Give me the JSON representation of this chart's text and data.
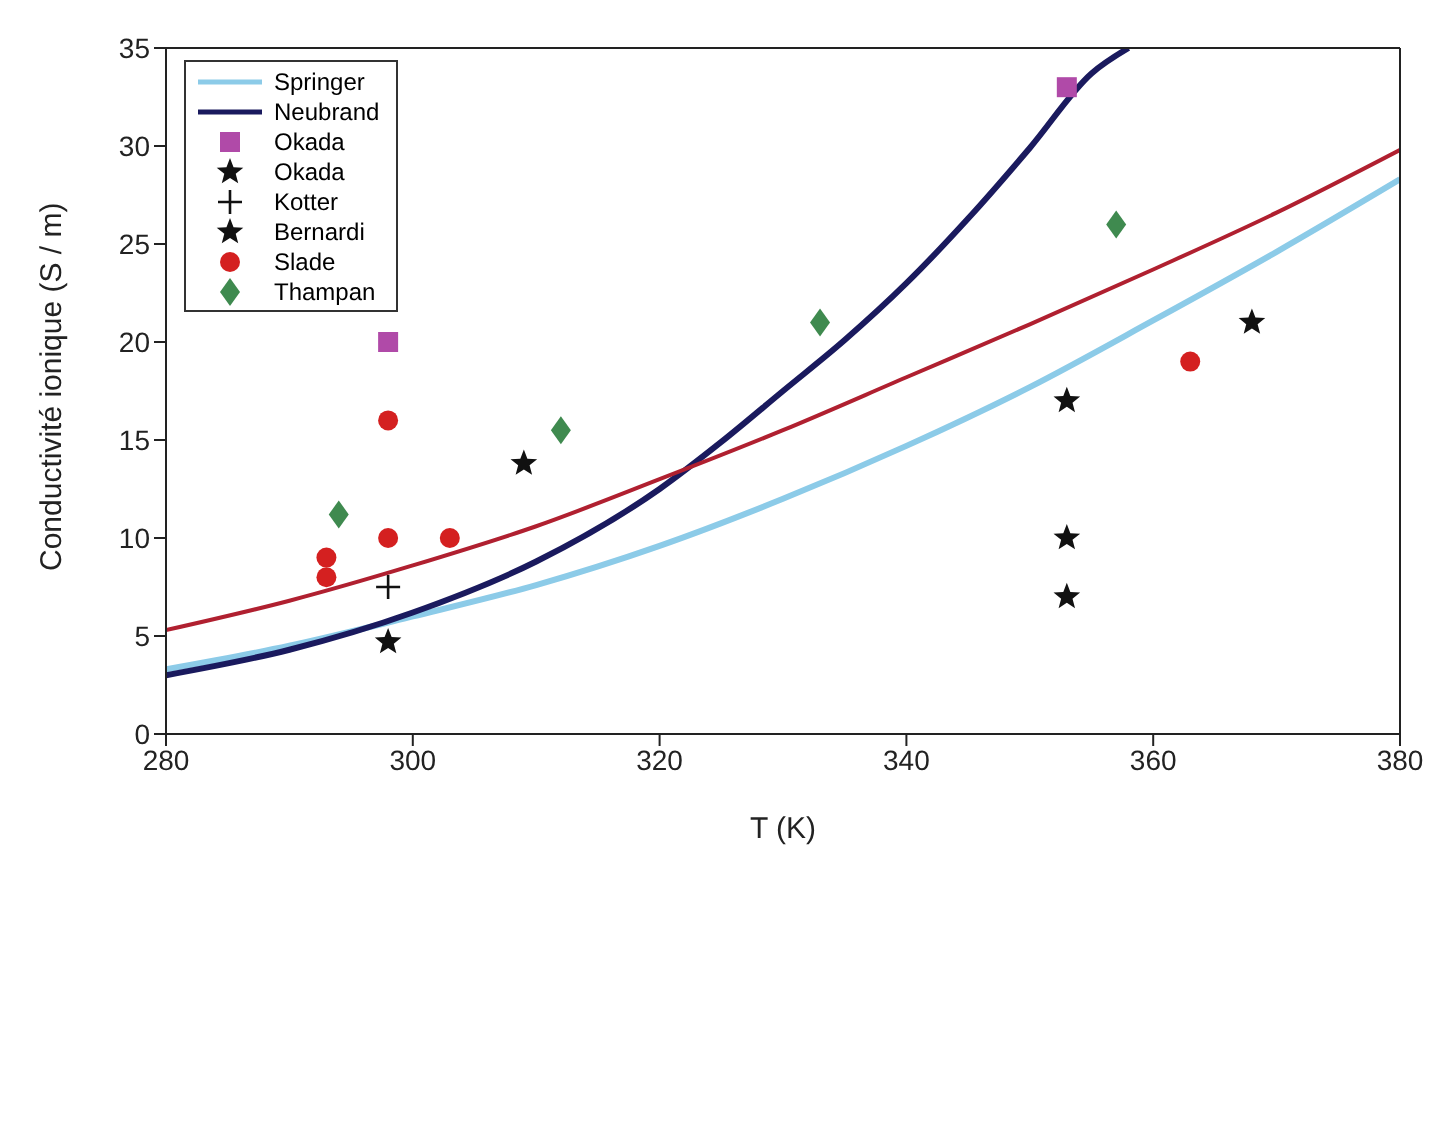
{
  "chart_data": {
    "type": "scatter",
    "xlabel": "T (K)",
    "ylabel": "Conductivité ionique (S / m)",
    "xlim": [
      280,
      380
    ],
    "ylim": [
      0,
      35
    ],
    "xticks": [
      280,
      300,
      320,
      340,
      360,
      380
    ],
    "yticks": [
      0,
      5,
      10,
      15,
      20,
      25,
      30,
      35
    ],
    "grid": false,
    "legend": "top left",
    "series": [
      {
        "name": "Springer",
        "type": "line",
        "color": "#8ccbe8",
        "marker": "none",
        "line_style": "solid",
        "x": [
          280,
          290,
          300,
          310,
          320,
          330,
          340,
          350,
          360,
          370,
          380
        ],
        "values": [
          3.3,
          4.5,
          6,
          7.6,
          9.6,
          12,
          14.7,
          17.7,
          21.1,
          24.6,
          28.3
        ]
      },
      {
        "name": "Neubrand",
        "type": "line",
        "color": "#1a1a5e",
        "marker": "none",
        "line_style": "solid",
        "x": [
          280,
          290,
          300,
          310,
          320,
          325,
          330,
          335,
          340,
          345,
          350,
          355,
          358
        ],
        "values": [
          3,
          4.3,
          6.2,
          8.8,
          12.5,
          14.9,
          17.5,
          20.1,
          23,
          26.3,
          29.9,
          33.7,
          35
        ]
      },
      {
        "type": "line",
        "color": "#b02030",
        "marker": "none",
        "line_style": "solid",
        "x": [
          280,
          290,
          300,
          310,
          320,
          330,
          340,
          350,
          360,
          370,
          380
        ],
        "values": [
          5.3,
          6.8,
          8.6,
          10.6,
          13,
          15.5,
          18.2,
          20.9,
          23.7,
          26.6,
          29.8
        ]
      },
      {
        "name": "Okada",
        "color": "#b04aa8",
        "marker": "square",
        "x": [
          298,
          353
        ],
        "values": [
          20,
          33
        ]
      },
      {
        "name": "Okada",
        "color": "#111111",
        "marker": "star",
        "x": [
          298,
          353,
          309
        ],
        "values": [
          4.7,
          10,
          13.8
        ]
      },
      {
        "name": "Kotter",
        "color": "#111111",
        "marker": "cross",
        "x": [
          298
        ],
        "values": [
          7.5
        ]
      },
      {
        "name": "Bernardi",
        "color": "#111111",
        "marker": "star",
        "x": [
          353,
          353,
          368
        ],
        "values": [
          17,
          7,
          21
        ]
      },
      {
        "name": "Slade",
        "color": "#d42020",
        "marker": "circle",
        "x": [
          293,
          293,
          298,
          298,
          303,
          363
        ],
        "values": [
          9,
          8,
          16,
          10,
          10,
          19
        ]
      },
      {
        "name": "Thampan",
        "color": "#3f8a4f",
        "marker": "diamond",
        "x": [
          294,
          312,
          333,
          357
        ],
        "values": [
          11.2,
          15.5,
          21,
          26
        ]
      }
    ]
  }
}
